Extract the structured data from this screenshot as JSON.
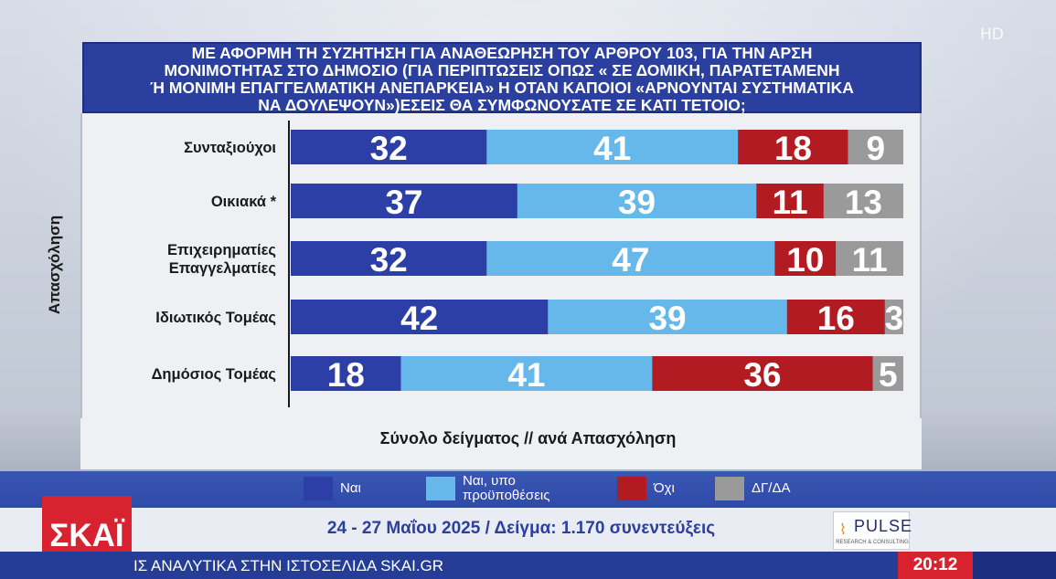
{
  "watermark": "HD",
  "title_lines": [
    "ΜΕ ΑΦΟΡΜΗ ΤΗ ΣΥΖΗΤΗΣΗ ΓΙΑ ΑΝΑΘΕΩΡΗΣΗ ΤΟΥ ΑΡΘΡΟΥ 103,  ΓΙΑ ΤΗΝ ΑΡΣΗ",
    "ΜΟΝΙΜΟΤΗΤΑΣ ΣΤΟ ΔΗΜΟΣΙΟ (ΓΙΑ ΠΕΡΙΠΤΩΣΕΙΣ ΟΠΩΣ « ΣΕ ΔΟΜΙΚΗ, ΠΑΡΑΤΕΤΑΜΕΝΗ",
    "Ή ΜΟΝΙΜΗ ΕΠΑΓΓΕΛΜΑΤΙΚΗ ΑΝΕΠΑΡΚΕΙΑ» Η ΟΤΑΝ ΚΑΠΟΙΟΙ «ΑΡΝΟΥΝΤΑΙ ΣΥΣΤΗΜΑΤΙΚΑ",
    "ΝΑ ΔΟΥΛΕΨΟΥΝ»)ΕΣΕΙΣ ΘΑ ΣΥΜΦΩΝΟΥΣΑΤΕ ΣΕ ΚΑΤΙ ΤΕΤΟΙΟ;"
  ],
  "colors": {
    "yes": "#2b3fa6",
    "conditional": "#66b8ea",
    "no": "#b31b22",
    "dk": "#9a9a9a"
  },
  "chart_data": {
    "type": "bar",
    "orientation": "horizontal",
    "stacked": true,
    "ylabel": "Απασχόληση",
    "xlabel": "Σύνολο δείγματος // ανά Απασχόληση",
    "xlim": [
      0,
      100
    ],
    "categories": [
      [
        "Συνταξιούχοι"
      ],
      [
        "Οικιακά *"
      ],
      [
        "Επιχειρηματίες",
        "Επαγγελματίες"
      ],
      [
        "Ιδιωτικός Τομέας"
      ],
      [
        "Δημόσιος Τομέας"
      ]
    ],
    "series": [
      {
        "name": "Ναι",
        "color": "#2b3fa6",
        "values": [
          32,
          37,
          32,
          42,
          18
        ]
      },
      {
        "name": "Ναι, υπο προϋποθέσεις",
        "color": "#66b8ea",
        "values": [
          41,
          39,
          47,
          39,
          41
        ]
      },
      {
        "name": "Όχι",
        "color": "#b31b22",
        "values": [
          18,
          11,
          10,
          16,
          36
        ]
      },
      {
        "name": "ΔΓ/ΔΑ",
        "color": "#9a9a9a",
        "values": [
          9,
          13,
          11,
          3,
          5
        ]
      }
    ],
    "legend": "bottom"
  },
  "legend": [
    {
      "lines": [
        "Ναι"
      ],
      "color": "#2b3fa6"
    },
    {
      "lines": [
        "Ναι, υπο",
        "προϋποθέσεις"
      ],
      "color": "#66b8ea"
    },
    {
      "lines": [
        "Όχι"
      ],
      "color": "#b31b22"
    },
    {
      "lines": [
        "ΔΓ/ΔΑ"
      ],
      "color": "#9a9a9a"
    }
  ],
  "info": "24 - 27 Μαΐου 2025 / Δείγμα: 1.170 συνεντεύξεις",
  "channel_logo": "ΣΚΑΪ",
  "pulse_logo": {
    "name": "PULSE",
    "sub": "RESEARCH & CONSULTING"
  },
  "ticker": "ΙΣ ΑΝΑΛΥΤΙΚΑ ΣΤΗΝ ΙΣΤΟΣΕΛΙΔΑ SKAI.GR",
  "clock": "20:12"
}
